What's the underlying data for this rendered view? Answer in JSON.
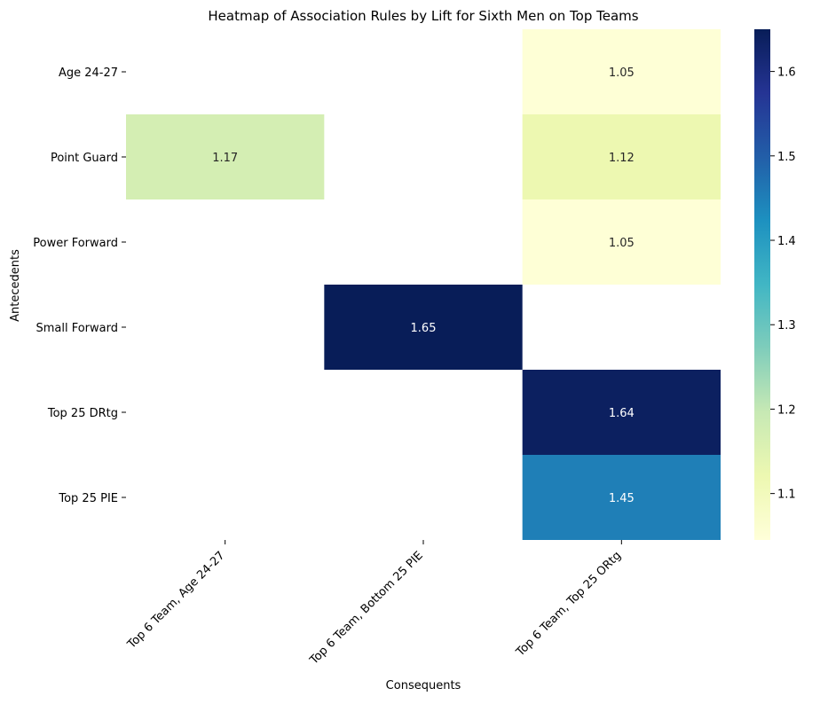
{
  "chart_data": {
    "type": "heatmap",
    "title": "Heatmap of Association Rules by Lift for Sixth Men on Top Teams",
    "xlabel": "Consequents",
    "ylabel": "Antecedents",
    "rows": [
      "Age 24-27",
      "Point Guard",
      "Power Forward",
      "Small Forward",
      "Top 25 DRtg",
      "Top 25 PIE"
    ],
    "columns": [
      "Top 6 Team, Age 24-27",
      "Top 6 Team, Bottom 25 PIE",
      "Top 6 Team, Top 25 ORtg"
    ],
    "values": [
      [
        null,
        null,
        1.05
      ],
      [
        1.17,
        null,
        1.12
      ],
      [
        null,
        null,
        1.05
      ],
      [
        null,
        1.65,
        null
      ],
      [
        null,
        null,
        1.64
      ],
      [
        null,
        null,
        1.45
      ]
    ],
    "value_labels": [
      [
        null,
        null,
        "1.05"
      ],
      [
        "1.17",
        null,
        "1.12"
      ],
      [
        null,
        null,
        "1.05"
      ],
      [
        null,
        "1.65",
        null
      ],
      [
        null,
        null,
        "1.64"
      ],
      [
        null,
        null,
        "1.45"
      ]
    ],
    "colormap": "YlGnBu",
    "color_range": [
      1.045,
      1.65
    ],
    "colorbar_ticks": [
      1.1,
      1.2,
      1.3,
      1.4,
      1.5,
      1.6
    ],
    "colorbar_tick_labels": [
      "1.1",
      "1.2",
      "1.3",
      "1.4",
      "1.5",
      "1.6"
    ],
    "grid": false
  }
}
